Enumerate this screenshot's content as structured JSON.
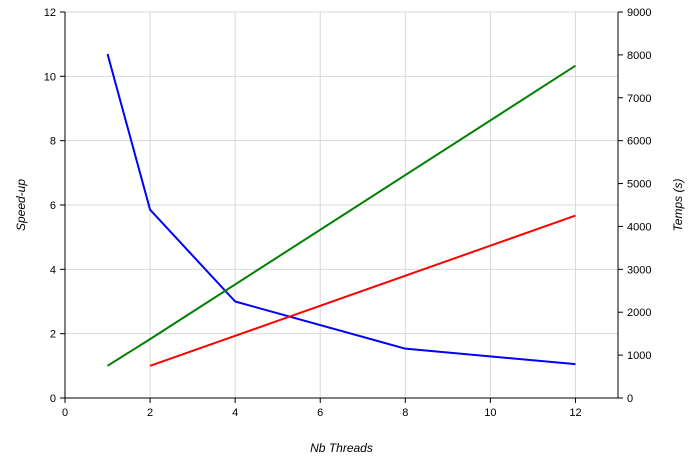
{
  "chart_data": {
    "type": "line",
    "title": "",
    "xlabel": "Nb Threads",
    "ylabel": "Speed-up",
    "y2label": "Temps (s)",
    "xlim": [
      0,
      13
    ],
    "xticks": [
      0,
      2,
      4,
      6,
      8,
      10,
      12
    ],
    "ylim": [
      0,
      12
    ],
    "yticks": [
      0,
      2,
      4,
      6,
      8,
      10,
      12
    ],
    "y2lim": [
      0,
      9000
    ],
    "y2ticks": [
      0,
      1000,
      2000,
      3000,
      4000,
      5000,
      6000,
      7000,
      8000,
      9000
    ],
    "grid": true,
    "legend": "none",
    "series": [
      {
        "axis": "right",
        "color": "#0000ff",
        "x": [
          1,
          2,
          4,
          8,
          12
        ],
        "y": [
          8020,
          4390,
          2250,
          1150,
          790
        ]
      },
      {
        "axis": "left",
        "color": "#008000",
        "x": [
          1,
          2,
          12
        ],
        "y": [
          1.0,
          1.83,
          10.33
        ]
      },
      {
        "axis": "left",
        "color": "#ff0000",
        "x": [
          2,
          12
        ],
        "y": [
          1.0,
          5.67
        ]
      }
    ]
  }
}
